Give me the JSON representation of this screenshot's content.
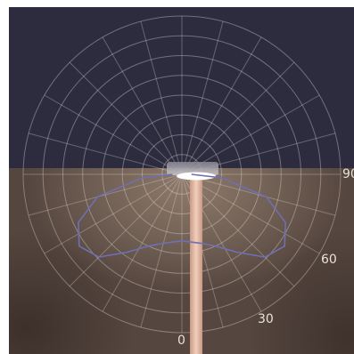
{
  "scene": {
    "sky_color": "#2d2c3e",
    "ground_color": "#7a6a5e",
    "curve_color": "#6f6fb4",
    "pole_color": "#e2b8a0"
  },
  "polar_grid": {
    "ring_count": 8,
    "spoke_step_degrees": 15,
    "angle_labels": [
      "0",
      "30",
      "60",
      "90"
    ]
  },
  "distribution_curve": {
    "unit": "degrees",
    "points": [
      {
        "angle": 0,
        "r": 0.42
      },
      {
        "angle": 15,
        "r": 0.45
      },
      {
        "angle": 25,
        "r": 0.5
      },
      {
        "angle": 35,
        "r": 0.6
      },
      {
        "angle": 45,
        "r": 0.74
      },
      {
        "angle": 55,
        "r": 0.79
      },
      {
        "angle": 65,
        "r": 0.72
      },
      {
        "angle": 75,
        "r": 0.55
      },
      {
        "angle": 85,
        "r": 0.25
      },
      {
        "angle": 90,
        "r": 0.06
      }
    ]
  }
}
